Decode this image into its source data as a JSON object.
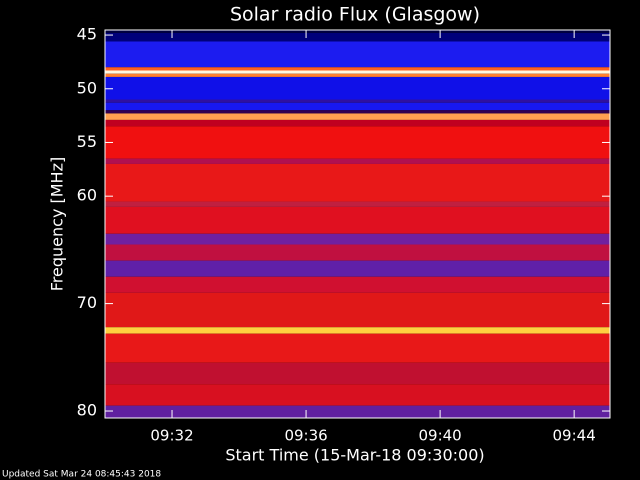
{
  "chart_data": {
    "type": "spectrogram",
    "title": "Solar radio Flux (Glasgow)",
    "x_label": "Start Time (15-Mar-18 09:30:00)",
    "y_label": "Frequency [MHz]",
    "footer": "Updated Sat Mar 24 08:45:43 2018",
    "xlim": [
      0,
      15.07
    ],
    "xticks": [
      {
        "value": 2,
        "label": "09:32"
      },
      {
        "value": 6,
        "label": "09:36"
      },
      {
        "value": 10,
        "label": "09:40"
      },
      {
        "value": 14,
        "label": "09:44"
      }
    ],
    "ylim": [
      44.53,
      80.65
    ],
    "y_inverted": true,
    "yticks": [
      45,
      50,
      55,
      60,
      70,
      80
    ],
    "bands": [
      {
        "from": 44.53,
        "to": 44.8,
        "color": "#000040"
      },
      {
        "from": 44.8,
        "to": 45.6,
        "color": "#00007a"
      },
      {
        "from": 45.6,
        "to": 48.0,
        "color": "#1c1cf0"
      },
      {
        "from": 48.0,
        "to": 48.3,
        "color": "#ff6020"
      },
      {
        "from": 48.3,
        "to": 48.6,
        "color": "#fff8e0"
      },
      {
        "from": 48.6,
        "to": 48.9,
        "color": "#ff8030"
      },
      {
        "from": 48.9,
        "to": 51.0,
        "color": "#1010e8"
      },
      {
        "from": 51.0,
        "to": 51.3,
        "color": "#3010a0"
      },
      {
        "from": 51.3,
        "to": 52.0,
        "color": "#1818f0"
      },
      {
        "from": 52.0,
        "to": 52.3,
        "color": "#300050"
      },
      {
        "from": 52.3,
        "to": 52.9,
        "color": "#ffa050"
      },
      {
        "from": 52.9,
        "to": 53.5,
        "color": "#c00020"
      },
      {
        "from": 53.5,
        "to": 56.5,
        "color": "#f01010"
      },
      {
        "from": 56.5,
        "to": 57.0,
        "color": "#b01050"
      },
      {
        "from": 57.0,
        "to": 60.5,
        "color": "#e81818"
      },
      {
        "from": 60.5,
        "to": 61.0,
        "color": "#c02040"
      },
      {
        "from": 61.0,
        "to": 63.5,
        "color": "#e01020"
      },
      {
        "from": 63.5,
        "to": 64.5,
        "color": "#7020a0"
      },
      {
        "from": 64.5,
        "to": 66.0,
        "color": "#c01040"
      },
      {
        "from": 66.0,
        "to": 67.5,
        "color": "#6020a8"
      },
      {
        "from": 67.5,
        "to": 69.0,
        "color": "#d01030"
      },
      {
        "from": 69.0,
        "to": 72.2,
        "color": "#e01818"
      },
      {
        "from": 72.2,
        "to": 72.8,
        "color": "#ffd040"
      },
      {
        "from": 72.8,
        "to": 75.5,
        "color": "#e81818"
      },
      {
        "from": 75.5,
        "to": 77.5,
        "color": "#c01030"
      },
      {
        "from": 77.5,
        "to": 79.5,
        "color": "#d81020"
      },
      {
        "from": 79.5,
        "to": 80.65,
        "color": "#6020a0"
      }
    ]
  }
}
